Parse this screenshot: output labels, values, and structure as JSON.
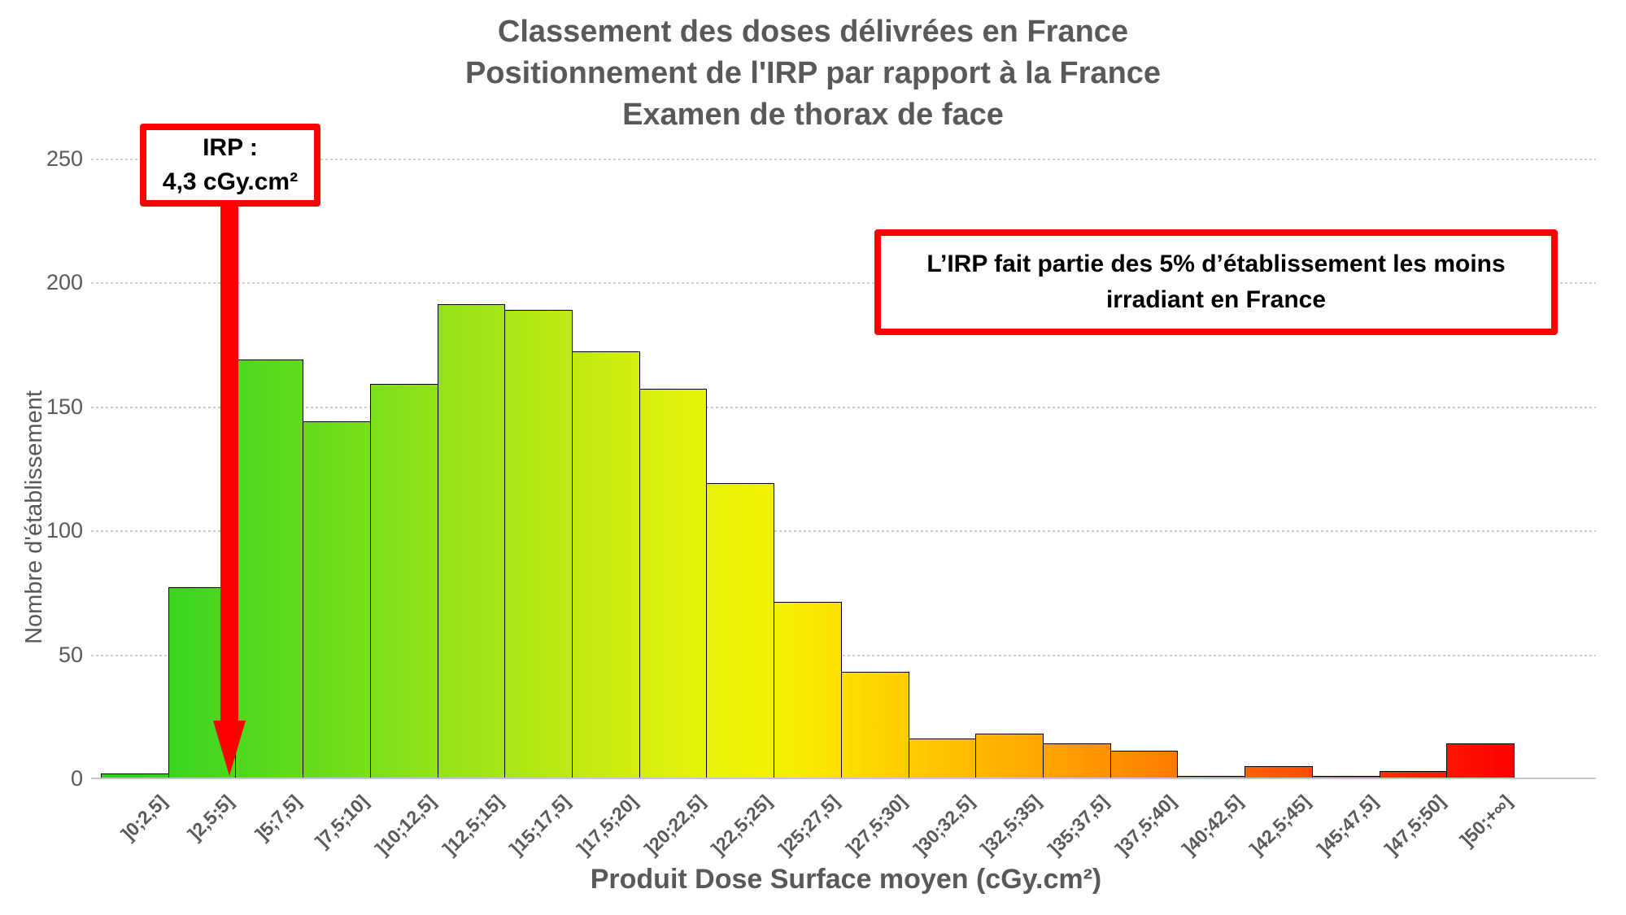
{
  "title": {
    "lines": [
      "Classement des doses délivrées en France",
      "Positionnement de l'IRP par rapport à la France",
      "Examen de thorax de face"
    ]
  },
  "annotations": {
    "irp_box": {
      "line1": "IRP :",
      "line2": "4,3 cGy.cm²"
    },
    "info_box": {
      "text": "L’IRP fait partie des 5% d’établissement les moins irradiant en France"
    }
  },
  "chart_data": {
    "type": "bar",
    "title": "Classement des doses délivrées en France – Positionnement de l'IRP par rapport à la France – Examen de thorax de face",
    "xlabel": "Produit Dose Surface moyen (cGy.cm²)",
    "ylabel": "Nombre d'établissement",
    "ylim": [
      0,
      250
    ],
    "yticks": [
      0,
      50,
      100,
      150,
      200,
      250
    ],
    "grid": true,
    "legend_position": "none",
    "categories": [
      "]0;2,5]",
      "]2,5;5]",
      "]5;7,5]",
      "]7,5;10]",
      "]10;12,5]",
      "]12,5;15]",
      "]15;17,5]",
      "]17,5;20]",
      "]20;22,5]",
      "]22,5;25]",
      "]25;27,5]",
      "]27,5;30]",
      "]30;32,5]",
      "]32,5;35]",
      "]35;37,5]",
      "]37,5;40]",
      "]40;42,5]",
      "]42,5;45]",
      "]45;47,5]",
      "]47,5;50]",
      "]50;+∞]"
    ],
    "values": [
      2,
      77,
      169,
      144,
      159,
      191,
      189,
      172,
      157,
      119,
      71,
      43,
      16,
      18,
      14,
      11,
      1,
      5,
      1,
      3,
      14
    ],
    "bar_gradient_edges": [
      "#2bd01f",
      "#3ad421",
      "#4dd81e",
      "#63db1c",
      "#7adf1a",
      "#92e218",
      "#a9e616",
      "#bfea12",
      "#d4ee0e",
      "#e6f208",
      "#f3f102",
      "#fcdf00",
      "#ffcc00",
      "#ffb900",
      "#ffa500",
      "#ff9100",
      "#ff7b00",
      "#ff6300",
      "#ff4b00",
      "#ff3100",
      "#ff1600",
      "#fe0000"
    ],
    "irp_marker": {
      "bin": "]2,5;5]",
      "value_label": "4,3 cGy.cm²"
    }
  },
  "colors": {
    "accent_red": "#fe0000",
    "text_gray": "#595959",
    "gridline": "#cdcdcd",
    "bar_border": "#000000",
    "background": "#ffffff"
  }
}
